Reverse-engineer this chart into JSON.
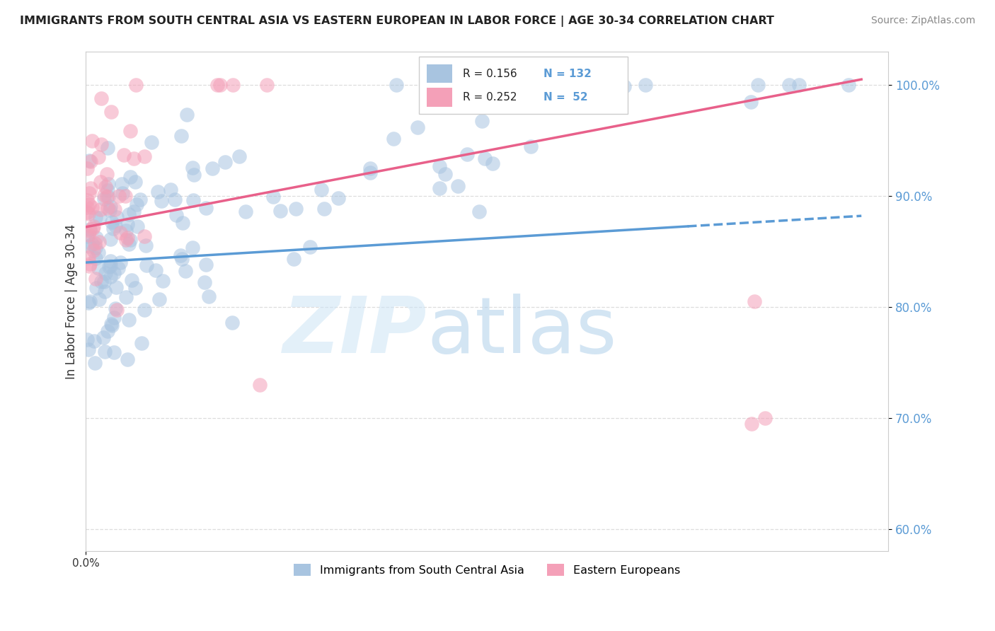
{
  "title": "IMMIGRANTS FROM SOUTH CENTRAL ASIA VS EASTERN EUROPEAN IN LABOR FORCE | AGE 30-34 CORRELATION CHART",
  "source": "Source: ZipAtlas.com",
  "ylabel": "In Labor Force | Age 30-34",
  "xlim": [
    0.0,
    0.6
  ],
  "ylim": [
    0.58,
    1.03
  ],
  "ytick_labels": [
    "60.0%",
    "70.0%",
    "80.0%",
    "90.0%",
    "100.0%"
  ],
  "ytick_values": [
    0.6,
    0.7,
    0.8,
    0.9,
    1.0
  ],
  "xtick_val": 0.0,
  "xtick_label": "0.0%",
  "legend_label1": "Immigrants from South Central Asia",
  "legend_label2": "Eastern Europeans",
  "R1": 0.156,
  "N1": 132,
  "R2": 0.252,
  "N2": 52,
  "color_blue": "#a8c4e0",
  "color_pink": "#f4a0b8",
  "line_blue": "#5b9bd5",
  "line_pink": "#e8608a",
  "title_color": "#222222",
  "source_color": "#888888",
  "ylabel_color": "#333333",
  "ytick_color": "#5b9bd5",
  "grid_color": "#dddddd",
  "bg_color": "#ffffff"
}
